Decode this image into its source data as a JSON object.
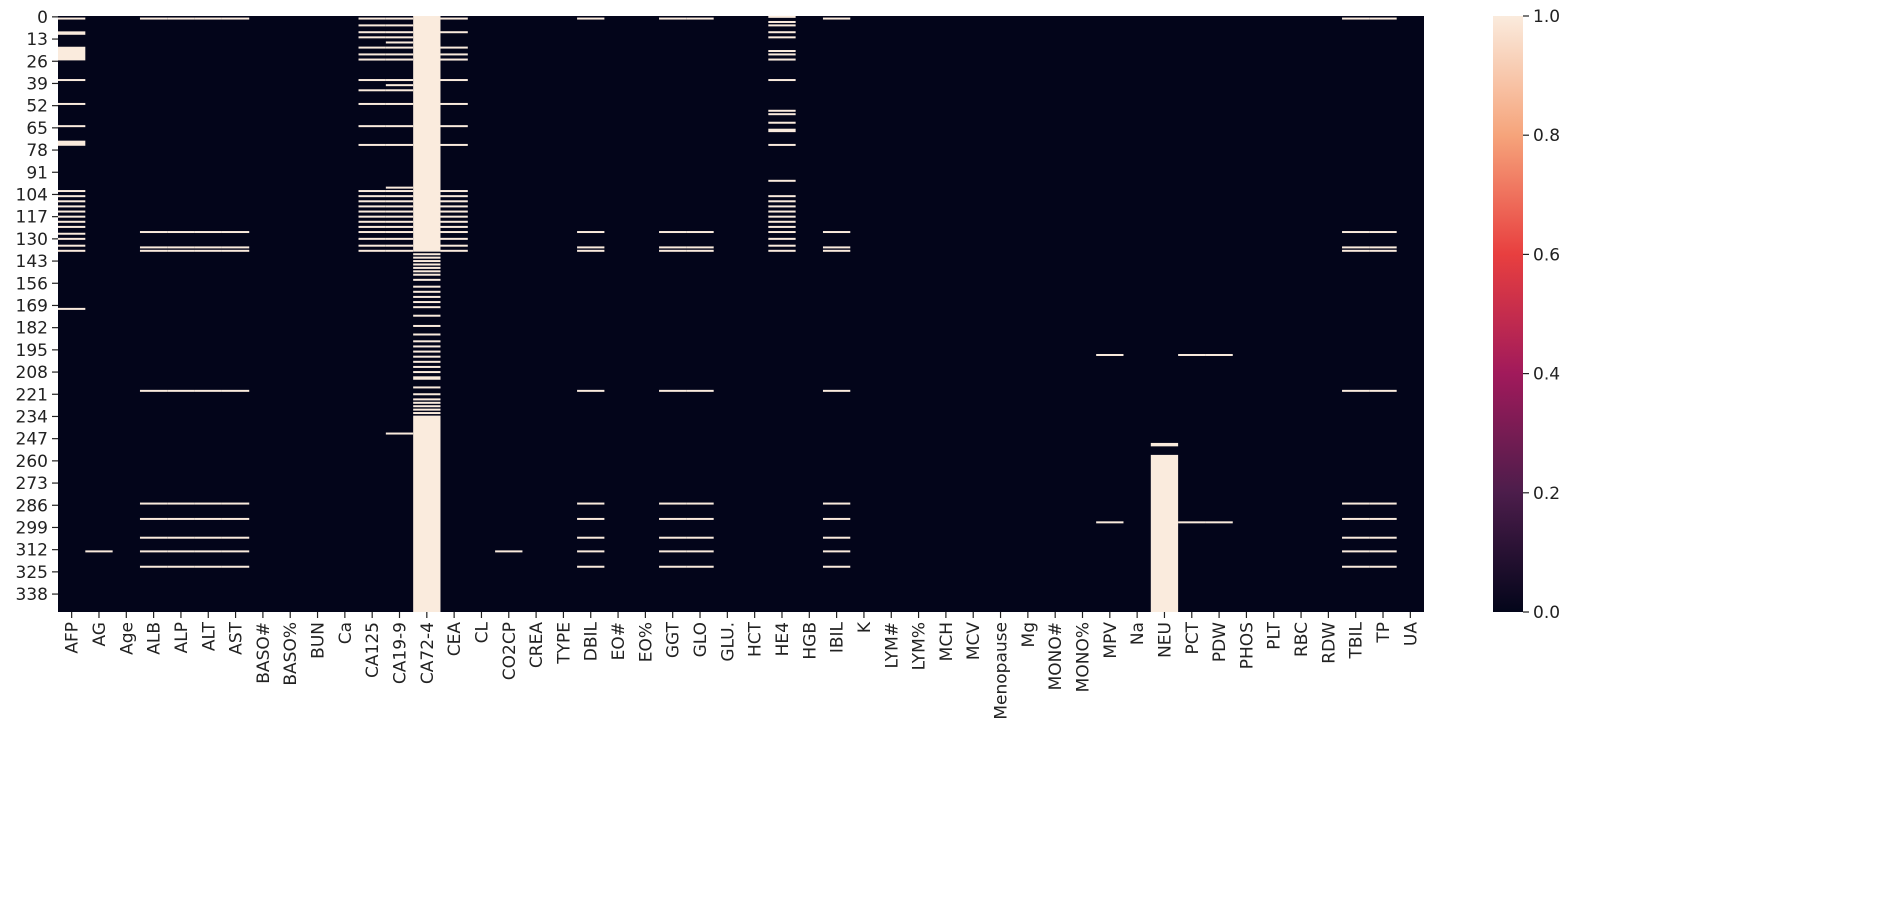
{
  "chart_data": {
    "type": "heatmap",
    "title": "",
    "xlabel": "",
    "ylabel": "",
    "columns": [
      "AFP",
      "AG",
      "Age",
      "ALB",
      "ALP",
      "ALT",
      "AST",
      "BASO#",
      "BASO%",
      "BUN",
      "Ca",
      "CA125",
      "CA19-9",
      "CA72-4",
      "CEA",
      "CL",
      "CO2CP",
      "CREA",
      "TYPE",
      "DBIL",
      "EO#",
      "EO%",
      "GGT",
      "GLO",
      "GLU.",
      "HCT",
      "HE4",
      "HGB",
      "IBIL",
      "K",
      "LYM#",
      "LYM%",
      "MCH",
      "MCV",
      "Menopause",
      "Mg",
      "MONO#",
      "MONO%",
      "MPV",
      "Na",
      "NEU",
      "PCT",
      "PDW",
      "PHOS",
      "PLT",
      "RBC",
      "RDW",
      "TBIL",
      "TP",
      "UA"
    ],
    "row_count": 349,
    "row_tick_labels": [
      "0",
      "13",
      "26",
      "39",
      "52",
      "65",
      "78",
      "91",
      "104",
      "117",
      "130",
      "143",
      "156",
      "169",
      "182",
      "195",
      "208",
      "221",
      "234",
      "247",
      "260",
      "273",
      "286",
      "299",
      "312",
      "325",
      "338"
    ],
    "row_tick_step": 13,
    "value_range": [
      0,
      1
    ],
    "colorbar": {
      "ticks": [
        "0.0",
        "0.2",
        "0.4",
        "0.6",
        "0.8",
        "1.0"
      ],
      "tick_values": [
        0,
        0.2,
        0.4,
        0.6,
        0.8,
        1.0
      ],
      "colormap": "rocket",
      "stops": [
        "#03051a",
        "#4c1d4b",
        "#a11a5b",
        "#e83f3f",
        "#f6a47b",
        "#faebdd"
      ]
    },
    "missing_cells": {
      "AFP": [
        1,
        9,
        10,
        18,
        19,
        20,
        21,
        22,
        23,
        24,
        25,
        37,
        51,
        64,
        73,
        74,
        75,
        102,
        105,
        108,
        111,
        114,
        117,
        120,
        123,
        127,
        130,
        134,
        137,
        171
      ],
      "AG": [
        313
      ],
      "ALB": [
        1,
        126,
        135,
        137,
        219,
        285,
        294,
        305,
        313,
        322
      ],
      "ALP": [
        1,
        126,
        135,
        137,
        219,
        285,
        294,
        305,
        313,
        322
      ],
      "ALT": [
        1,
        126,
        135,
        137,
        219,
        285,
        294,
        305,
        313,
        322
      ],
      "AST": [
        1,
        126,
        135,
        137,
        219,
        285,
        294,
        305,
        313,
        322
      ],
      "CA125": [
        1,
        5,
        9,
        12,
        18,
        22,
        25,
        37,
        43,
        51,
        64,
        75,
        102,
        105,
        108,
        111,
        114,
        117,
        120,
        123,
        126,
        130,
        134,
        137
      ],
      "CA19-9": [
        1,
        5,
        9,
        12,
        15,
        18,
        22,
        25,
        37,
        40,
        43,
        51,
        64,
        75,
        100,
        102,
        105,
        108,
        111,
        114,
        117,
        120,
        123,
        126,
        130,
        134,
        137,
        244
      ],
      "CA72-4": [
        0,
        1,
        2,
        3,
        4,
        5,
        6,
        7,
        8,
        9,
        10,
        11,
        12,
        13,
        14,
        15,
        16,
        17,
        18,
        19,
        20,
        21,
        22,
        23,
        24,
        25,
        26,
        27,
        28,
        29,
        30,
        31,
        32,
        33,
        34,
        35,
        36,
        37,
        38,
        39,
        40,
        41,
        42,
        43,
        44,
        45,
        46,
        47,
        48,
        49,
        50,
        51,
        52,
        53,
        54,
        55,
        56,
        57,
        58,
        59,
        60,
        61,
        62,
        63,
        64,
        65,
        66,
        67,
        68,
        69,
        70,
        71,
        72,
        73,
        74,
        75,
        76,
        77,
        78,
        79,
        80,
        81,
        82,
        83,
        84,
        85,
        86,
        87,
        88,
        89,
        90,
        91,
        92,
        93,
        94,
        95,
        96,
        97,
        98,
        99,
        100,
        101,
        102,
        103,
        104,
        105,
        106,
        107,
        108,
        109,
        110,
        111,
        112,
        113,
        114,
        115,
        116,
        117,
        118,
        119,
        120,
        121,
        122,
        123,
        124,
        125,
        126,
        127,
        128,
        129,
        130,
        131,
        132,
        133,
        134,
        135,
        136,
        137,
        139,
        141,
        143,
        145,
        147,
        149,
        151,
        154,
        158,
        161,
        164,
        167,
        170,
        175,
        181,
        186,
        190,
        193,
        196,
        199,
        202,
        205,
        208,
        211,
        212,
        217,
        221,
        224,
        226,
        228,
        230,
        232,
        234,
        235,
        236,
        237,
        238,
        239,
        240,
        241,
        242,
        243,
        244,
        245,
        246,
        247,
        248,
        249,
        250,
        251,
        252,
        253,
        254,
        255,
        256,
        257,
        258,
        259,
        260,
        261,
        262,
        263,
        264,
        265,
        266,
        267,
        268,
        269,
        270,
        271,
        272,
        273,
        274,
        275,
        276,
        277,
        278,
        279,
        280,
        281,
        282,
        283,
        284,
        285,
        286,
        287,
        288,
        289,
        290,
        291,
        292,
        293,
        294,
        295,
        296,
        297,
        298,
        299,
        300,
        301,
        302,
        303,
        304,
        305,
        306,
        307,
        308,
        309,
        310,
        311,
        312,
        313,
        314,
        315,
        316,
        317,
        318,
        319,
        320,
        321,
        322,
        323,
        324,
        325,
        326,
        327,
        328,
        329,
        330,
        331,
        332,
        333,
        334,
        335,
        336,
        337,
        338,
        339,
        340,
        341,
        342,
        343,
        344,
        345,
        346,
        347,
        348
      ],
      "CEA": [
        1,
        9,
        18,
        22,
        25,
        37,
        51,
        64,
        75,
        102,
        105,
        108,
        111,
        114,
        117,
        120,
        123,
        126,
        130,
        134,
        137
      ],
      "CO2CP": [
        313
      ],
      "DBIL": [
        1,
        126,
        135,
        137,
        219,
        285,
        294,
        305,
        313,
        322
      ],
      "GGT": [
        1,
        126,
        135,
        137,
        219,
        285,
        294,
        305,
        313,
        322
      ],
      "GLO": [
        1,
        126,
        135,
        137,
        219,
        285,
        294,
        305,
        313,
        322
      ],
      "HE4": [
        0,
        3,
        5,
        9,
        12,
        20,
        22,
        25,
        37,
        55,
        57,
        62,
        66,
        67,
        75,
        96,
        105,
        108,
        111,
        114,
        117,
        120,
        123,
        126,
        130,
        134,
        137
      ],
      "IBIL": [
        1,
        126,
        135,
        137,
        219,
        285,
        294,
        305,
        313,
        322
      ],
      "MPV": [
        198,
        296
      ],
      "NEU": [
        250,
        251,
        257,
        258,
        259,
        260,
        261,
        262,
        263,
        264,
        265,
        266,
        267,
        268,
        269,
        270,
        271,
        272,
        273,
        274,
        275,
        276,
        277,
        278,
        279,
        280,
        281,
        282,
        283,
        284,
        285,
        286,
        287,
        288,
        289,
        290,
        291,
        292,
        293,
        294,
        295,
        296,
        297,
        298,
        299,
        300,
        301,
        302,
        303,
        304,
        305,
        306,
        307,
        308,
        309,
        310,
        311,
        312,
        313,
        314,
        315,
        316,
        317,
        318,
        319,
        320,
        321,
        322,
        323,
        324,
        325,
        326,
        327,
        328,
        329,
        330,
        331,
        332,
        333,
        334,
        335,
        336,
        337,
        338,
        339,
        340,
        341,
        342,
        343,
        344,
        345,
        346,
        347,
        348
      ],
      "PCT": [
        198,
        296
      ],
      "PDW": [
        198,
        296
      ],
      "TBIL": [
        1,
        126,
        135,
        137,
        219,
        285,
        294,
        305,
        313,
        322
      ],
      "TP": [
        1,
        126,
        135,
        137,
        219,
        285,
        294,
        305,
        313,
        322
      ]
    }
  }
}
